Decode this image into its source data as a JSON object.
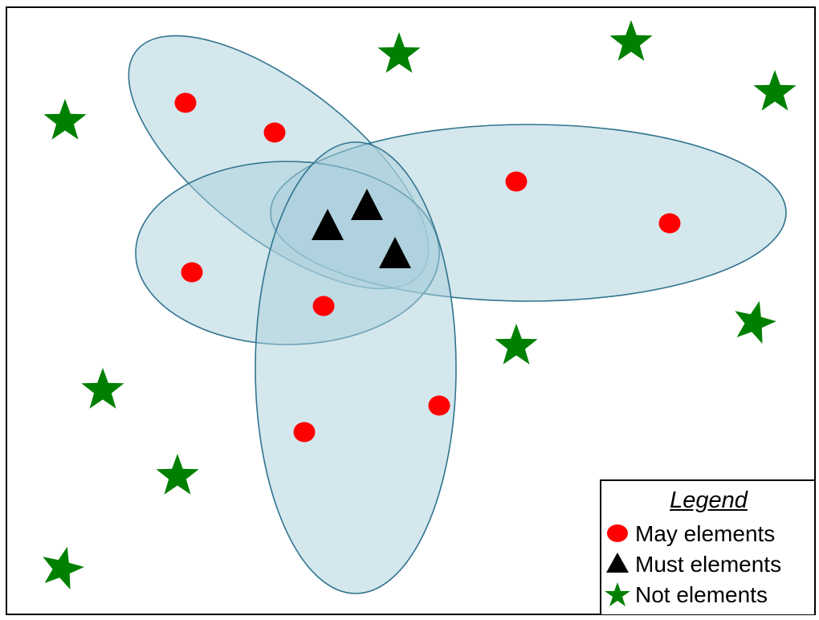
{
  "colors": {
    "may": "#ff0000",
    "must": "#000000",
    "not": "#008000",
    "ellipse_fill": "#a9cfdc",
    "ellipse_stroke": "#31748f"
  },
  "legend": {
    "title": "Legend",
    "items": [
      {
        "label": "May elements",
        "shape": "circle"
      },
      {
        "label": "Must elements",
        "shape": "triangle"
      },
      {
        "label": "Not elements",
        "shape": "star"
      }
    ]
  }
}
